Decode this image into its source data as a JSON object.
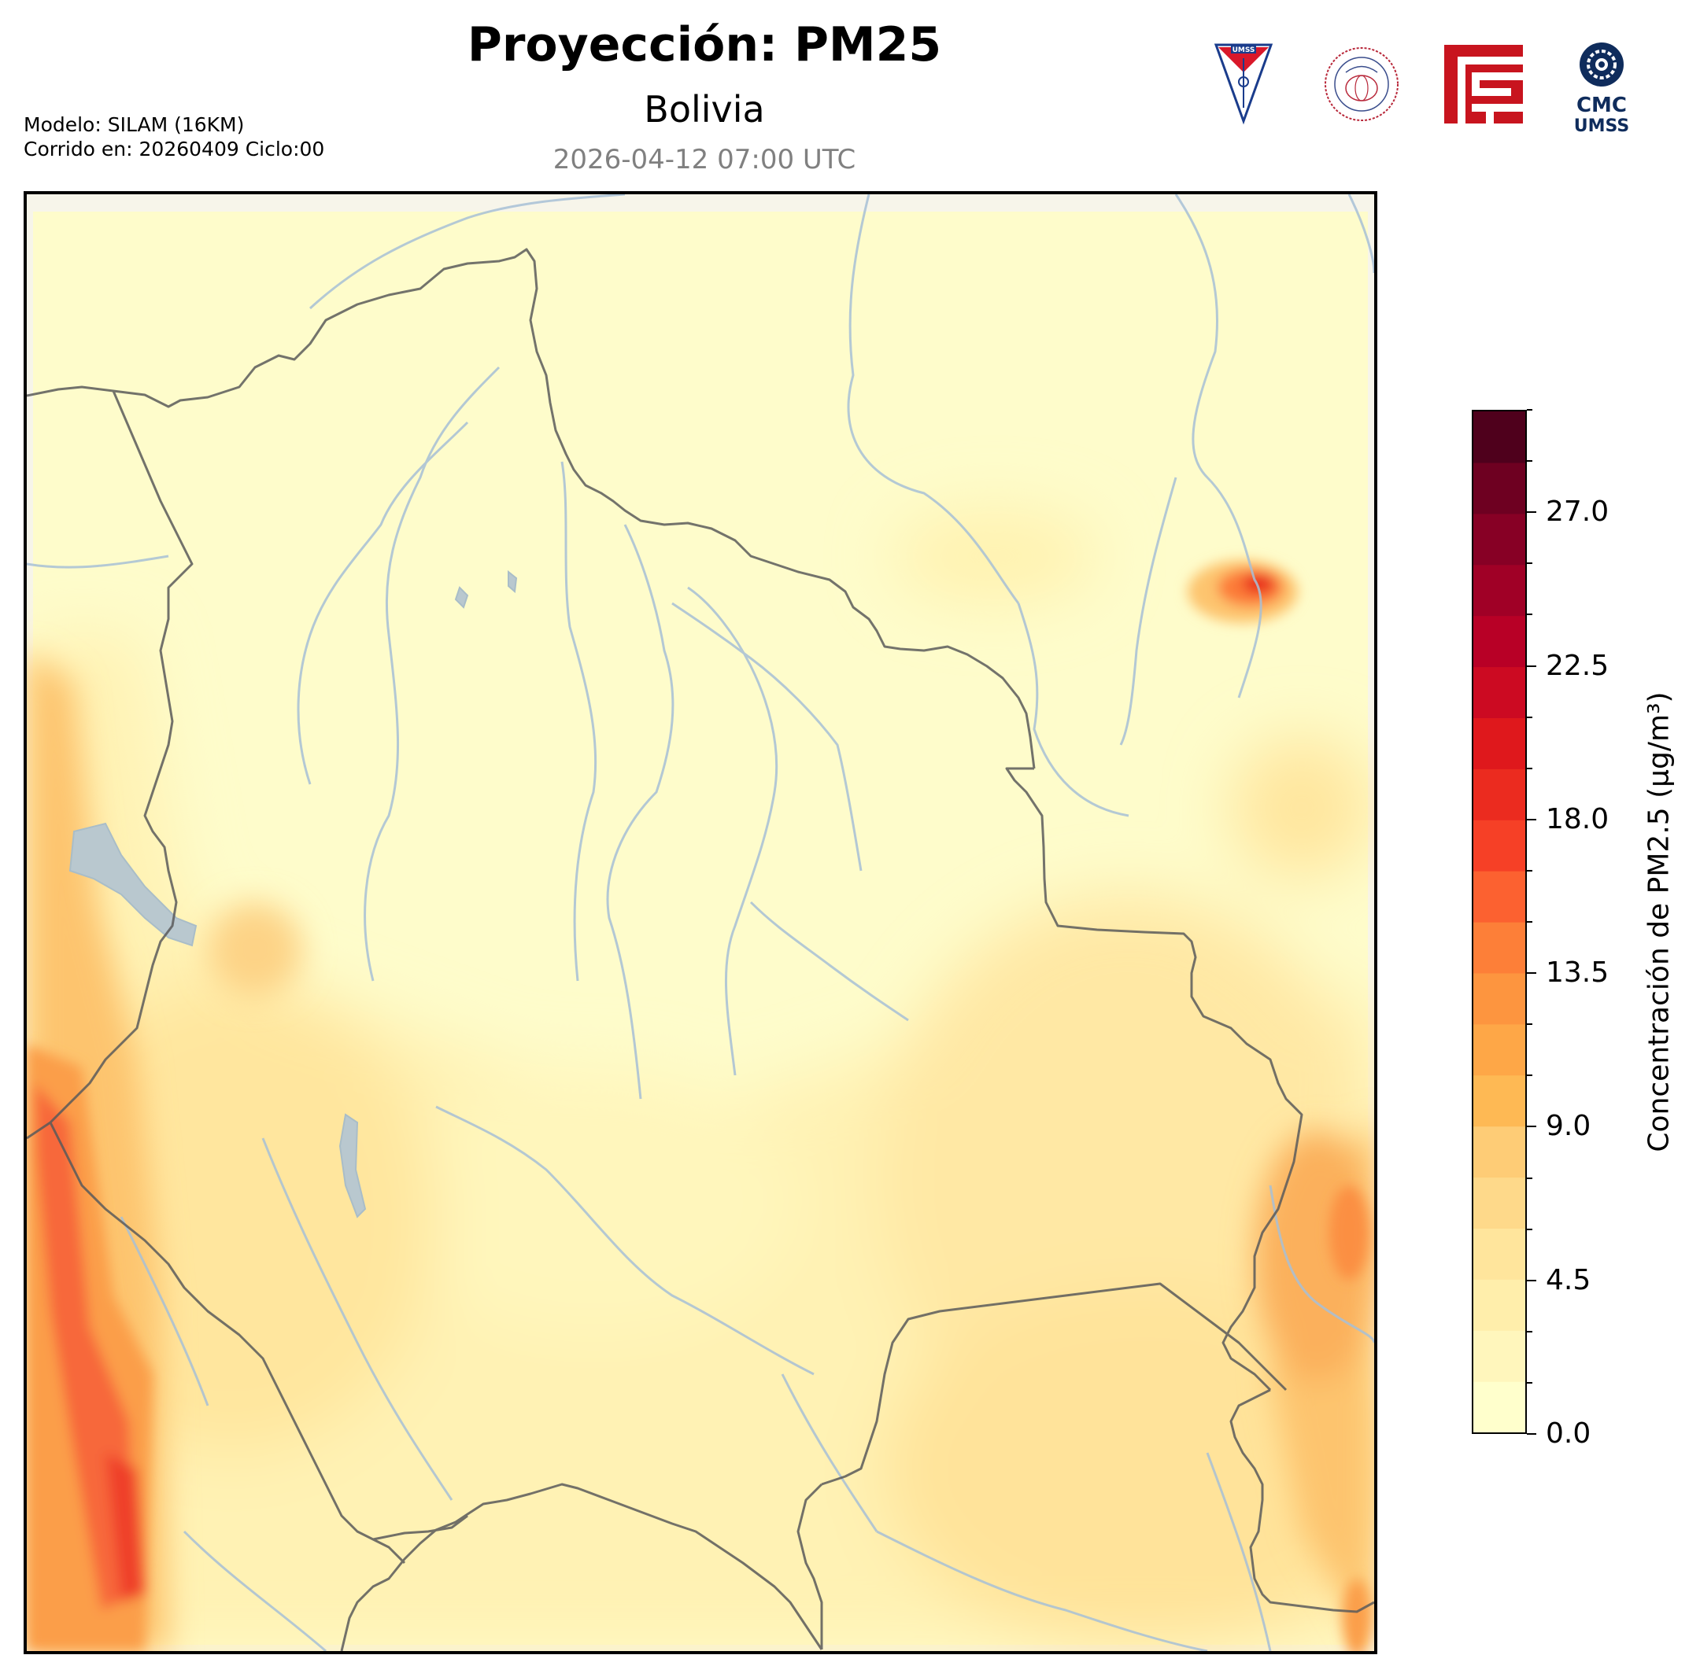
{
  "header": {
    "title": "Proyección: PM25",
    "subtitle": "Bolivia",
    "datetime": "2026-04-12 07:00 UTC",
    "model_line": "Modelo: SILAM (16KM)",
    "run_line": "Corrido en: 20260409 Ciclo:00"
  },
  "logos": [
    {
      "name": "umss-shield-logo",
      "text": "UMSS"
    },
    {
      "name": "departamento-fisica-seal-logo",
      "text": "DEPARTAMENTO DE FISICA"
    },
    {
      "name": "red-geometric-logo",
      "text": ""
    },
    {
      "name": "cmc-umss-logo",
      "text_top": "CMC",
      "text_bottom": "UMSS"
    }
  ],
  "map": {
    "region": "Bolivia",
    "variable": "PM2.5",
    "layers": [
      "pm25-concentration-field",
      "rivers",
      "lakes",
      "country-borders"
    ],
    "colors": {
      "background": "#fefccb",
      "border": "#5a5a5a",
      "river": "#a7bfd6",
      "lake": "#b9c8cf"
    }
  },
  "colorbar": {
    "label": "Concentración de PM2.5 (µg/m³)",
    "min": 0.0,
    "max": 30.0,
    "ticks": [
      "0.0",
      "4.5",
      "9.0",
      "13.5",
      "18.0",
      "22.5",
      "27.0"
    ],
    "tick_values": [
      0.0,
      4.5,
      9.0,
      13.5,
      18.0,
      22.5,
      27.0
    ],
    "levels": 20,
    "colors": [
      "#ffffcc",
      "#fff6bc",
      "#ffeeab",
      "#ffe59c",
      "#fed98a",
      "#fecc76",
      "#feb954",
      "#fea747",
      "#fd953f",
      "#fd7f38",
      "#fc6130",
      "#f64026",
      "#eb2b1f",
      "#df181c",
      "#cc0a22",
      "#b80026",
      "#a00026",
      "#870025",
      "#6e0021",
      "#4f001c"
    ]
  }
}
